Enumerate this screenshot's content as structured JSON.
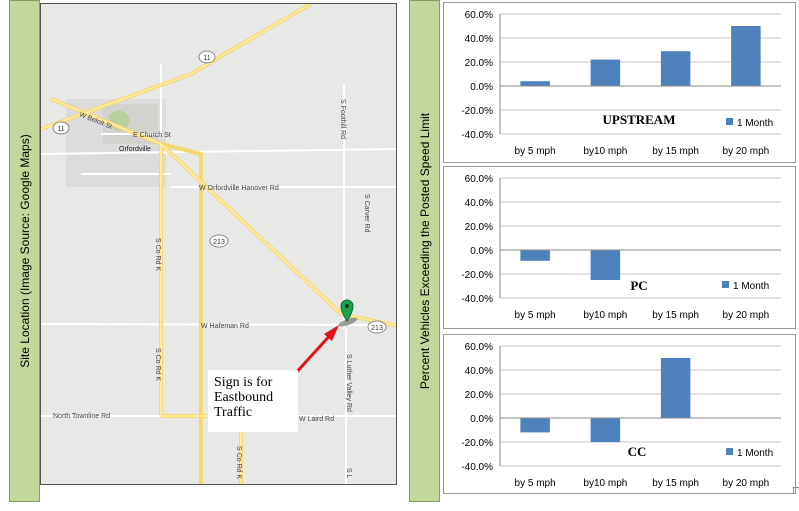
{
  "side_label_left": "Site Location (Image Source: Google Maps)",
  "side_label_right": "Percent Vehicles Exceeding the Posted Speed Limit",
  "map": {
    "labels": {
      "hwy11_top": "11",
      "hwy11_left": "11",
      "beloit": "W Beloit St",
      "church": "E Church St",
      "orfordville": "Orfordville",
      "hanover": "W Orfordville Hanover Rd",
      "hwy213_mid": "213",
      "hwy213_right": "213",
      "hafeman": "W Hafeman Rd",
      "foothill": "S Foothill Rd",
      "carver": "S Carver Rd",
      "corde_upper": "S Co Rd K",
      "corde_mid": "S Co Rd K",
      "corde_lower": "S Co Rd K",
      "luther": "S Luther Valley Rd",
      "laird": "W Laird Rd",
      "north_townline": "North Townline Rd",
      "bottom_s": "S L"
    },
    "callout_lines": [
      "Sign is for",
      "Eastbound",
      "Traffic"
    ],
    "colors": {
      "marker": "#1aa34a",
      "arrow": "#e0121a",
      "road_major": "#f7e27a"
    }
  },
  "chart_data": [
    {
      "type": "bar",
      "title": "UPSTREAM",
      "categories": [
        "by 5 mph",
        "by10 mph",
        "by 15 mph",
        "by 20 mph"
      ],
      "series": [
        {
          "name": "1 Month",
          "values": [
            4,
            22,
            29,
            50
          ],
          "color": "#4f81bd"
        }
      ],
      "ylim": [
        -40,
        60
      ],
      "yticks": [
        "60.0%",
        "40.0%",
        "20.0%",
        "0.0%",
        "-20.0%",
        "-40.0%"
      ],
      "grid": true,
      "legend": "right"
    },
    {
      "type": "bar",
      "title": "PC",
      "categories": [
        "by 5 mph",
        "by10 mph",
        "by 15 mph",
        "by 20 mph"
      ],
      "series": [
        {
          "name": "1 Month",
          "values": [
            -9,
            -25,
            0,
            0
          ],
          "color": "#4f81bd"
        }
      ],
      "ylim": [
        -40,
        60
      ],
      "yticks": [
        "60.0%",
        "40.0%",
        "20.0%",
        "0.0%",
        "-20.0%",
        "-40.0%"
      ],
      "grid": true,
      "legend": "right"
    },
    {
      "type": "bar",
      "title": "CC",
      "categories": [
        "by 5 mph",
        "by10 mph",
        "by 15 mph",
        "by 20 mph"
      ],
      "series": [
        {
          "name": "1 Month",
          "values": [
            -12,
            -20,
            50,
            0
          ],
          "color": "#4f81bd"
        }
      ],
      "ylim": [
        -40,
        60
      ],
      "yticks": [
        "60.0%",
        "40.0%",
        "20.0%",
        "0.0%",
        "-20.0%",
        "-40.0%"
      ],
      "grid": true,
      "legend": "right"
    }
  ]
}
